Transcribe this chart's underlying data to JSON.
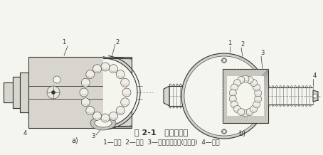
{
  "title": "图 2-1   滚珠丝杠副",
  "caption": "1—螺母  2—滚珠  3—回程引导装置(反向器)  4—丝杠",
  "label_a": "a)",
  "label_b": "b)",
  "bg_color": "#f5f5f0",
  "dc": "#333333",
  "lc": "#888888",
  "hc": "#aaaaaa",
  "fig_width": 4.54,
  "fig_height": 2.18,
  "dpi": 100
}
